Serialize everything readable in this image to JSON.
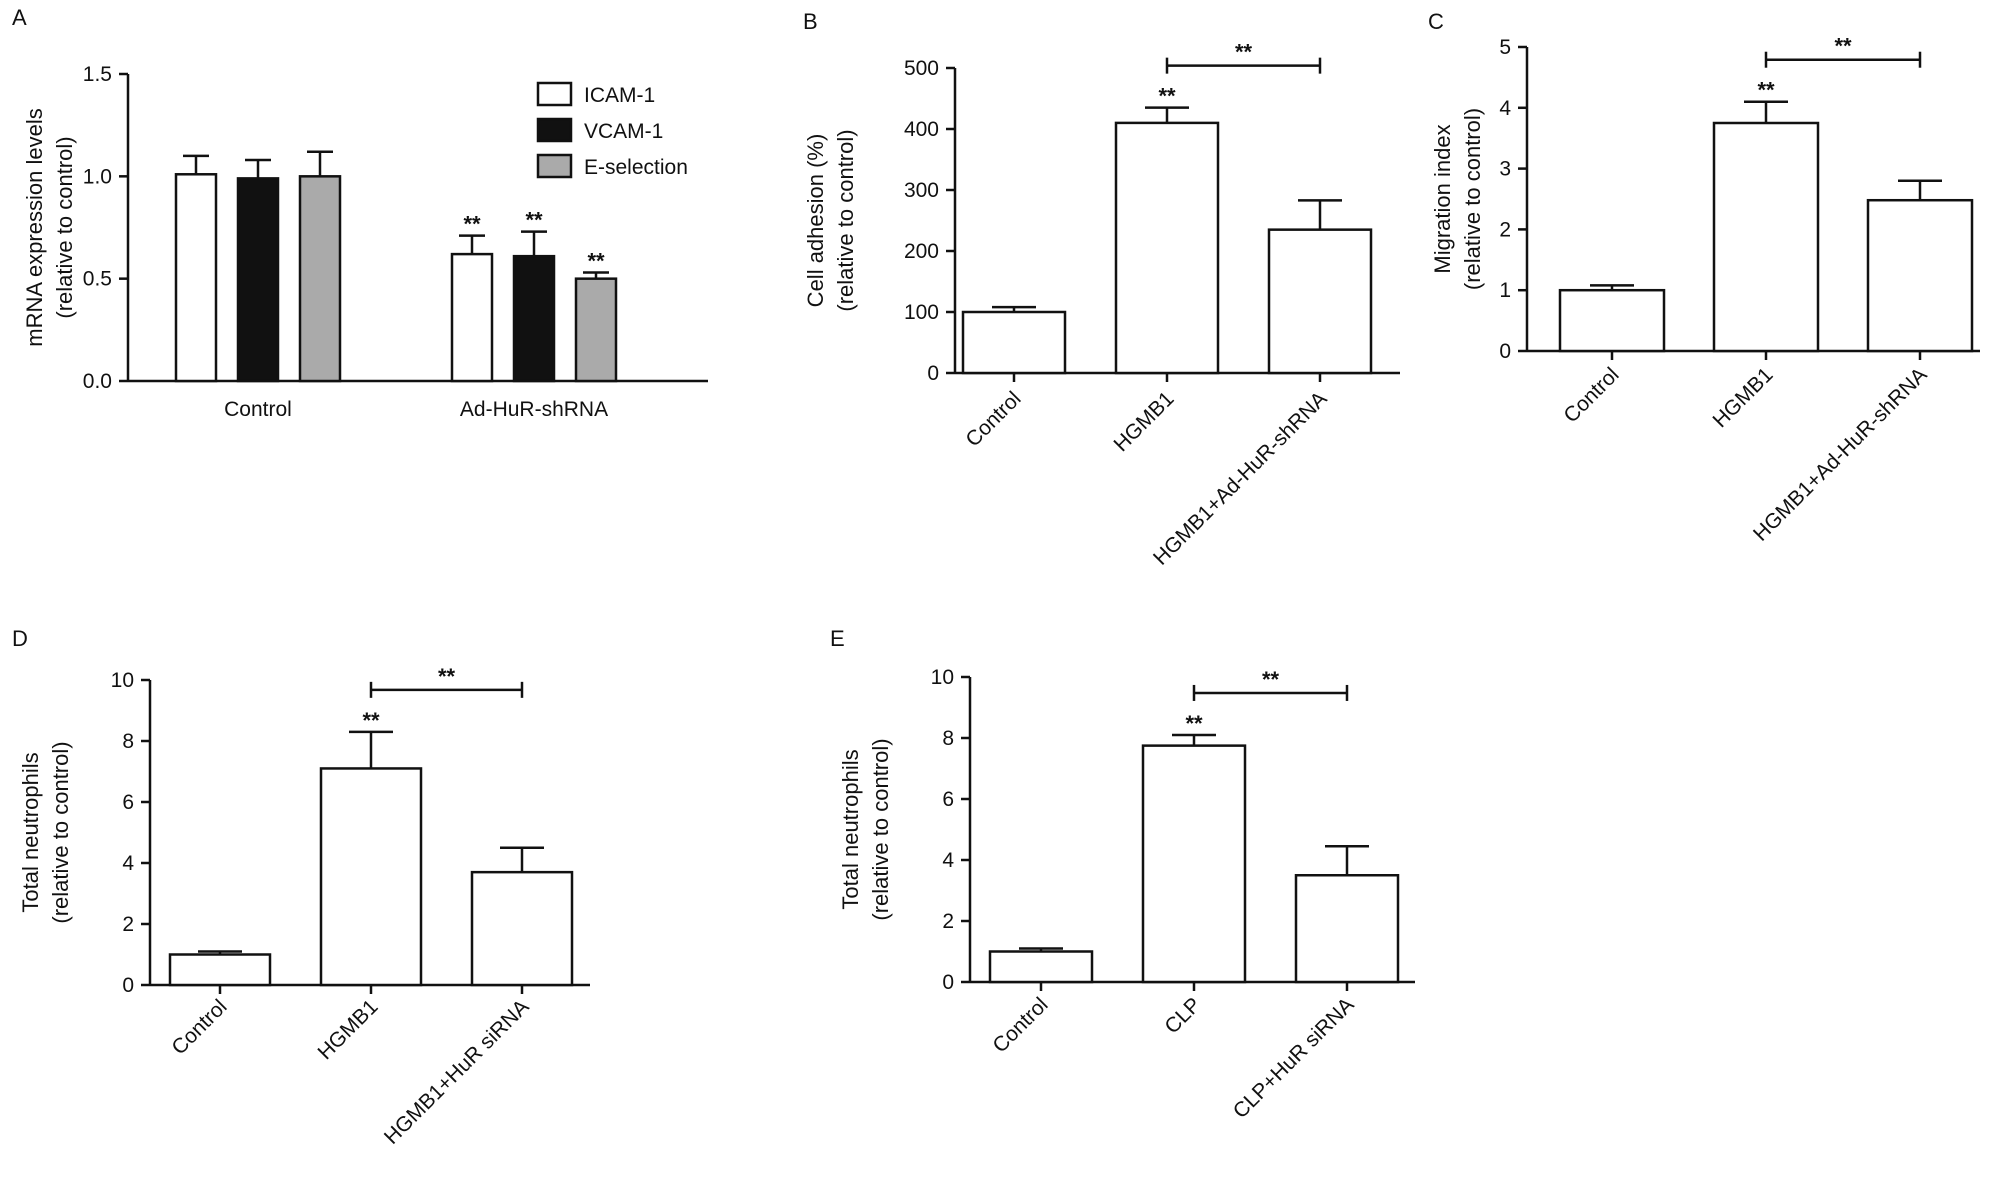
{
  "figure": {
    "panel_letters": [
      "A",
      "B",
      "C",
      "D",
      "E"
    ]
  },
  "chart_data": [
    {
      "panel": "A",
      "type": "bar",
      "ylabel": [
        "mRNA expression levels",
        "(relative to control)"
      ],
      "xlabel": "",
      "ylim": [
        0,
        1.5
      ],
      "yticks": [
        "0.0",
        "0.5",
        "1.0",
        "1.5"
      ],
      "categories": [
        "Control",
        "Ad-HuR-shRNA"
      ],
      "series": [
        {
          "name": "ICAM-1",
          "color": "#ffffff",
          "values": [
            1.01,
            0.62
          ],
          "errors": [
            0.09,
            0.09
          ],
          "sig": [
            "",
            "**"
          ]
        },
        {
          "name": "VCAM-1",
          "color": "#111111",
          "values": [
            0.99,
            0.61
          ],
          "errors": [
            0.09,
            0.12
          ],
          "sig": [
            "",
            "**"
          ]
        },
        {
          "name": "E-selection",
          "color": "#aaaaaa",
          "values": [
            1.0,
            0.5
          ],
          "errors": [
            0.12,
            0.03
          ],
          "sig": [
            "",
            "**"
          ]
        }
      ],
      "legend": "top-right"
    },
    {
      "panel": "B",
      "type": "bar",
      "ylabel": [
        "Cell adhesion (%)",
        "(relative to control)"
      ],
      "xlabel": "",
      "ylim": [
        0,
        500
      ],
      "yticks": [
        "0",
        "100",
        "200",
        "300",
        "400",
        "500"
      ],
      "categories": [
        "Control",
        "HGMB1",
        "HGMB1+Ad-HuR-shRNA"
      ],
      "values": [
        100,
        410,
        235
      ],
      "errors": [
        8,
        25,
        48
      ],
      "sig": [
        "",
        "**",
        ""
      ],
      "comparison": {
        "from": 1,
        "to": 2,
        "label": "**"
      }
    },
    {
      "panel": "C",
      "type": "bar",
      "ylabel": [
        "Migration index",
        "(relative to control)"
      ],
      "xlabel": "",
      "ylim": [
        0,
        5
      ],
      "yticks": [
        "0",
        "1",
        "2",
        "3",
        "4",
        "5"
      ],
      "categories": [
        "Control",
        "HGMB1",
        "HGMB1+Ad-HuR-shRNA"
      ],
      "values": [
        1.0,
        3.75,
        2.48
      ],
      "errors": [
        0.08,
        0.35,
        0.32
      ],
      "sig": [
        "",
        "**",
        ""
      ],
      "comparison": {
        "from": 1,
        "to": 2,
        "label": "**"
      }
    },
    {
      "panel": "D",
      "type": "bar",
      "ylabel": [
        "Total neutrophils",
        "(relative to control)"
      ],
      "xlabel": "",
      "ylim": [
        0,
        10
      ],
      "yticks": [
        "0",
        "2",
        "4",
        "6",
        "8",
        "10"
      ],
      "categories": [
        "Control",
        "HGMB1",
        "HGMB1+HuR siRNA"
      ],
      "values": [
        1.0,
        7.1,
        3.7
      ],
      "errors": [
        0.1,
        1.2,
        0.8
      ],
      "sig": [
        "",
        "**",
        ""
      ],
      "comparison": {
        "from": 1,
        "to": 2,
        "label": "**"
      }
    },
    {
      "panel": "E",
      "type": "bar",
      "ylabel": [
        "Total neutrophils",
        "(relative to control)"
      ],
      "xlabel": "",
      "ylim": [
        0,
        10
      ],
      "yticks": [
        "0",
        "2",
        "4",
        "6",
        "8",
        "10"
      ],
      "categories": [
        "Control",
        "CLP",
        "CLP+HuR siRNA"
      ],
      "values": [
        1.0,
        7.75,
        3.5
      ],
      "errors": [
        0.1,
        0.35,
        0.95
      ],
      "sig": [
        "",
        "**",
        ""
      ],
      "comparison": {
        "from": 1,
        "to": 2,
        "label": "**"
      }
    }
  ]
}
